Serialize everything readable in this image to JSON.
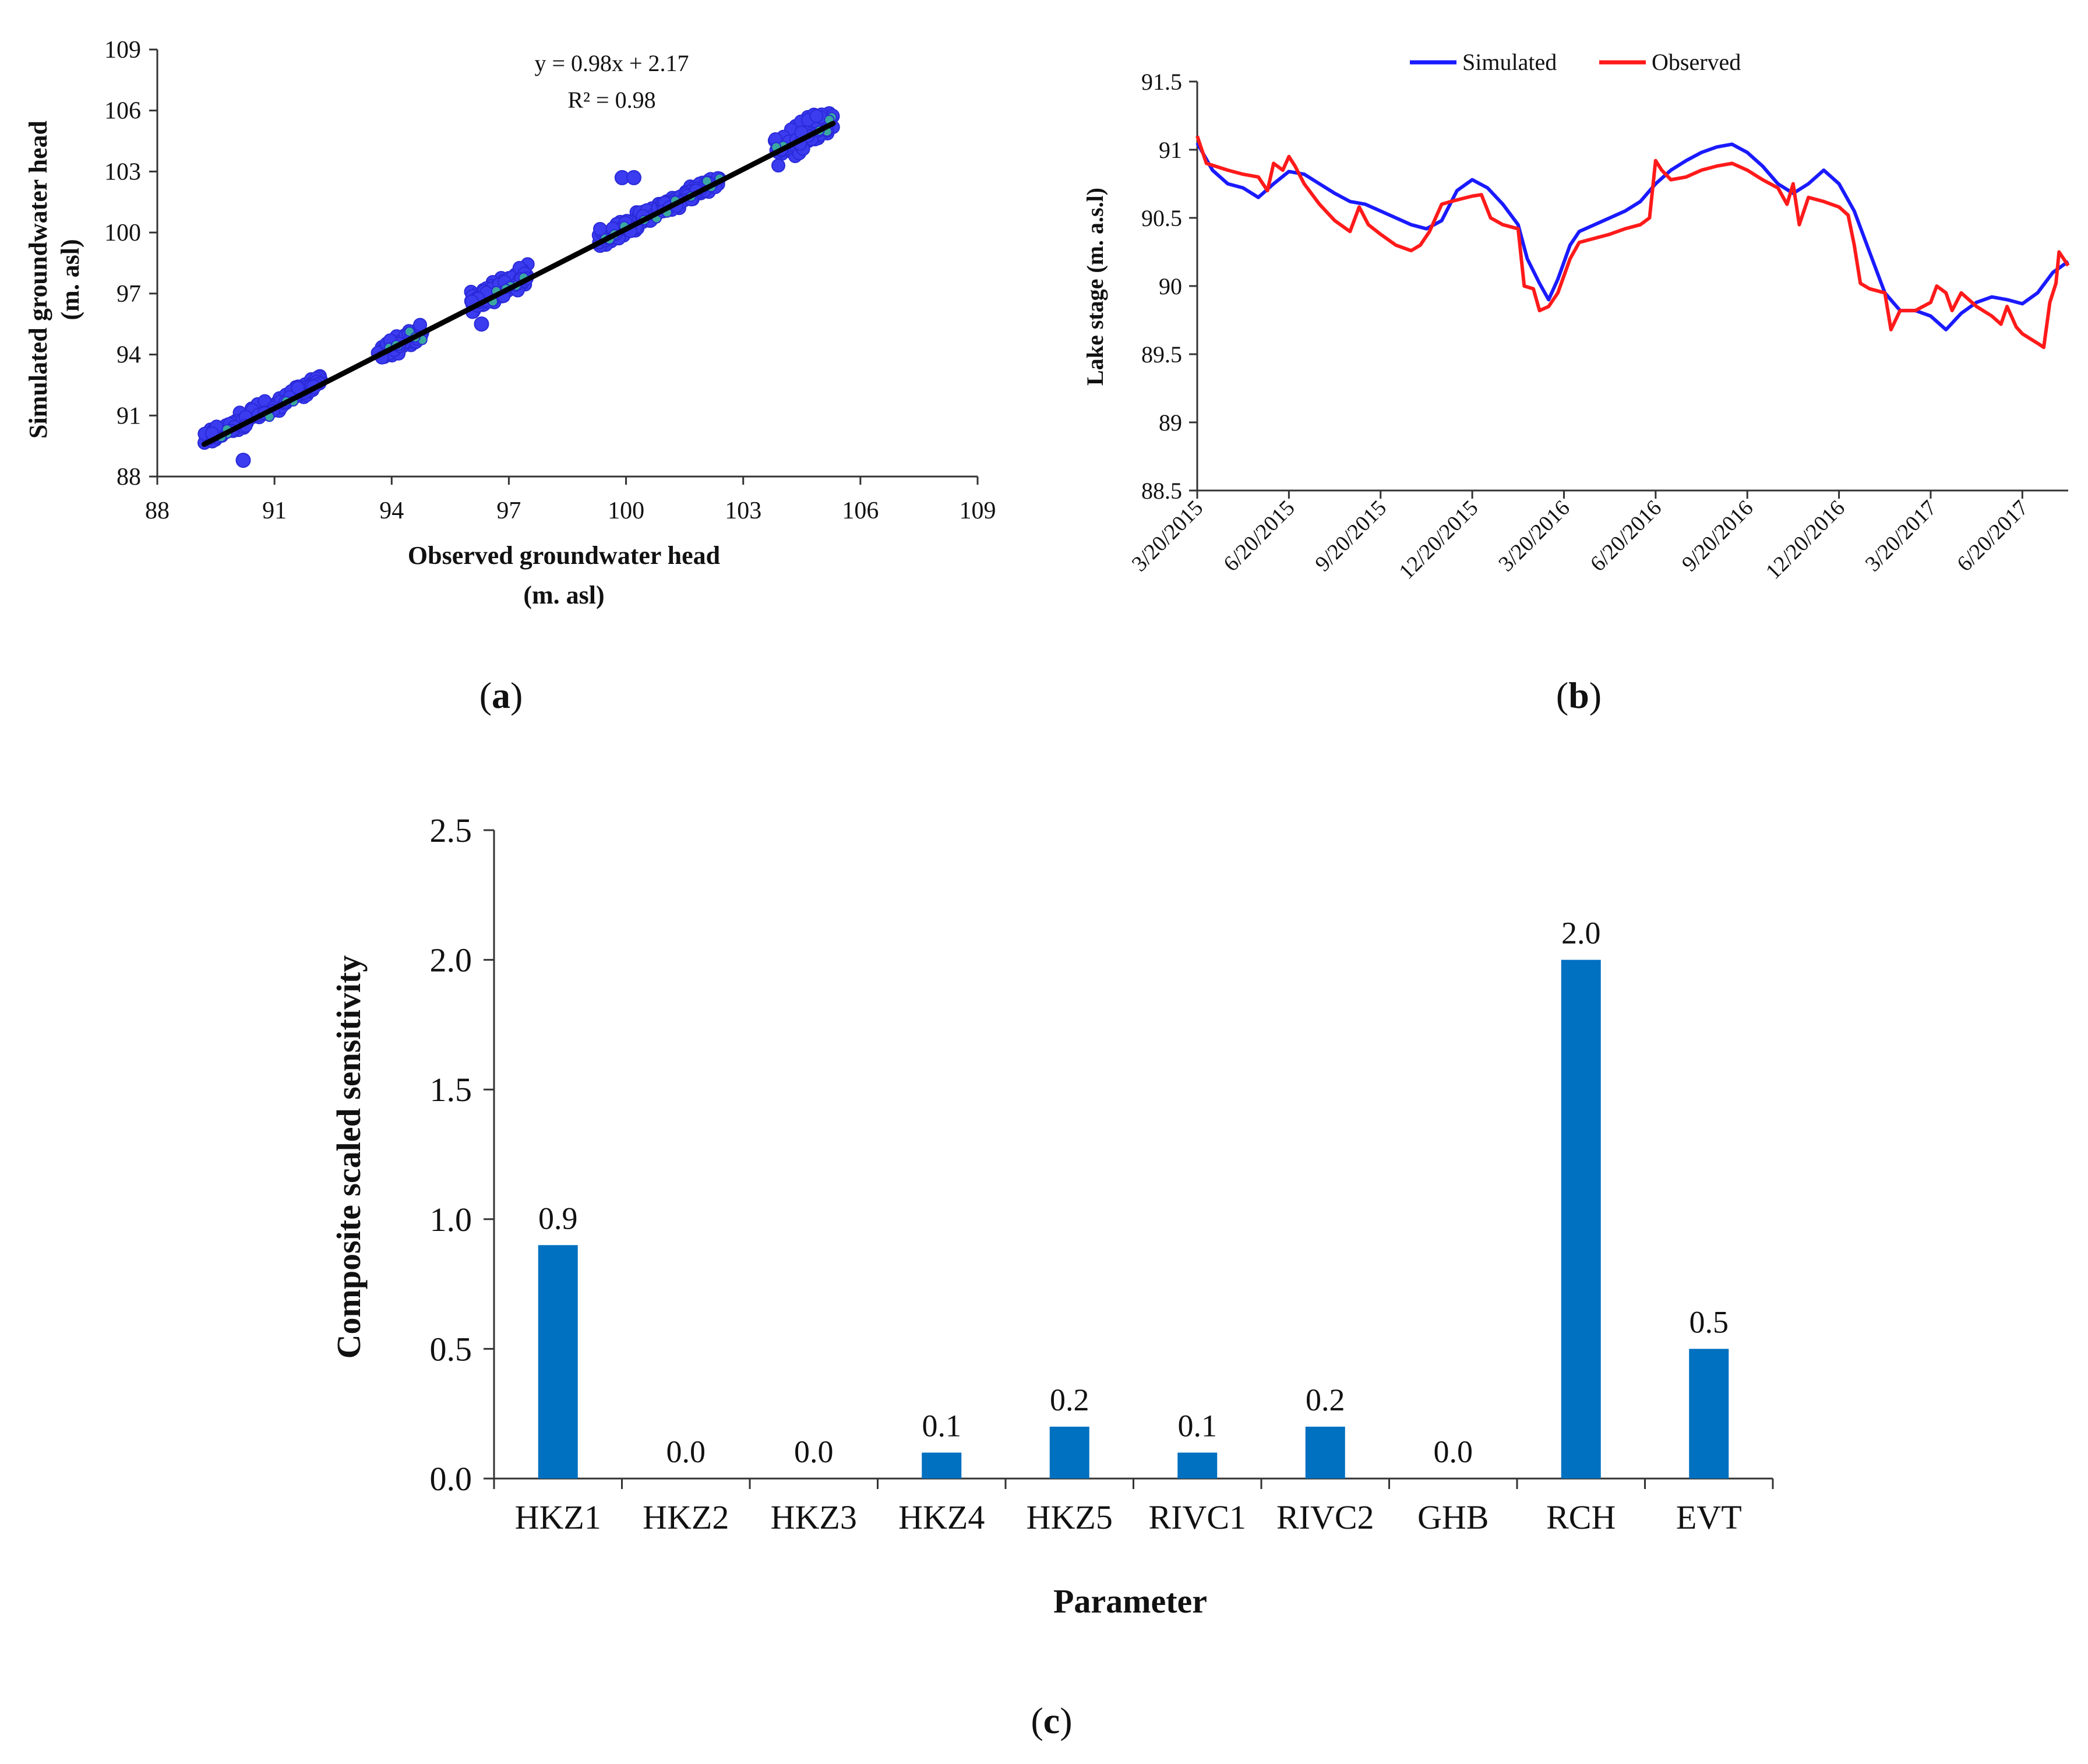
{
  "figure": {
    "panel_a_caption": {
      "open": "(",
      "letter": "a",
      "close": ")"
    },
    "panel_b_caption": {
      "open": "(",
      "letter": "b",
      "close": ")"
    },
    "panel_c_caption": {
      "open": "(",
      "letter": "c",
      "close": ")"
    }
  },
  "colors": {
    "scatter_fill": "#3b3bf0",
    "scatter_stroke": "#2a2ad8",
    "scatter_center": "#3aa8a0",
    "fit_line": "#000000",
    "simulated": "#1a1aff",
    "observed": "#ff1a1a",
    "bar": "#0070c0",
    "axis": "#333333"
  },
  "chart_data": [
    {
      "id": "a",
      "type": "scatter",
      "xlabel_line1": "Observed groundwater head",
      "xlabel_line2": "(m. asl)",
      "ylabel_line1": "Simulated groundwater head",
      "ylabel_line2": "(m. asl)",
      "xlim": [
        88,
        109
      ],
      "ylim": [
        88,
        109
      ],
      "xticks": [
        "88",
        "91",
        "94",
        "97",
        "100",
        "103",
        "106",
        "109"
      ],
      "yticks": [
        "88",
        "91",
        "94",
        "97",
        "100",
        "103",
        "106",
        "109"
      ],
      "equation": "y = 0.98x + 2.17",
      "r2": "R² = 0.98",
      "fit": {
        "slope": 0.98,
        "intercept": 2.17,
        "x_range": [
          89.2,
          105.3
        ]
      },
      "clusters": [
        {
          "x_range": [
            89.2,
            92.2
          ],
          "y_center_offset": 0.2,
          "spread": 0.55,
          "n": 170
        },
        {
          "x_range": [
            93.6,
            94.8
          ],
          "y_center_offset": 0.1,
          "spread": 0.65,
          "n": 80
        },
        {
          "x_range": [
            96.0,
            97.5
          ],
          "y_center_offset": 0.2,
          "spread": 0.7,
          "n": 100
        },
        {
          "x_range": [
            99.3,
            100.9
          ],
          "y_center_offset": 0.1,
          "spread": 0.6,
          "n": 110
        },
        {
          "x_range": [
            100.9,
            102.4
          ],
          "y_center_offset": 0.1,
          "spread": 0.5,
          "n": 90
        },
        {
          "x_range": [
            103.8,
            105.3
          ],
          "y_center_offset": 0.2,
          "spread": 1.1,
          "n": 130
        }
      ],
      "outliers": [
        {
          "x": 90.2,
          "y": 88.8
        },
        {
          "x": 99.9,
          "y": 102.7
        },
        {
          "x": 100.2,
          "y": 102.7
        },
        {
          "x": 92.0,
          "y": 92.4
        },
        {
          "x": 96.3,
          "y": 95.5
        }
      ]
    },
    {
      "id": "b",
      "type": "line",
      "ylabel": "Lake stage (m. a.s.l)",
      "ylim": [
        88.5,
        91.5
      ],
      "yticks": [
        "88.5",
        "89",
        "89.5",
        "90",
        "90.5",
        "91",
        "91.5"
      ],
      "x_tick_labels": [
        "3/20/2015",
        "6/20/2015",
        "9/20/2015",
        "12/20/2015",
        "3/20/2016",
        "6/20/2016",
        "9/20/2016",
        "12/20/2016",
        "3/20/2017",
        "6/20/2017"
      ],
      "x_range_months": [
        0,
        28.5
      ],
      "legend": [
        "Simulated",
        "Observed"
      ],
      "series": [
        {
          "name": "Simulated",
          "points": [
            [
              0,
              91.05
            ],
            [
              0.5,
              90.85
            ],
            [
              1,
              90.75
            ],
            [
              1.5,
              90.72
            ],
            [
              2,
              90.65
            ],
            [
              2.5,
              90.75
            ],
            [
              3,
              90.84
            ],
            [
              3.5,
              90.82
            ],
            [
              4,
              90.75
            ],
            [
              4.5,
              90.68
            ],
            [
              5,
              90.62
            ],
            [
              5.5,
              90.6
            ],
            [
              6,
              90.55
            ],
            [
              6.5,
              90.5
            ],
            [
              7,
              90.45
            ],
            [
              7.5,
              90.42
            ],
            [
              8,
              90.48
            ],
            [
              8.5,
              90.7
            ],
            [
              9,
              90.78
            ],
            [
              9.5,
              90.72
            ],
            [
              10,
              90.6
            ],
            [
              10.5,
              90.45
            ],
            [
              10.8,
              90.2
            ],
            [
              11.2,
              90.02
            ],
            [
              11.5,
              89.9
            ],
            [
              11.8,
              90.05
            ],
            [
              12.2,
              90.3
            ],
            [
              12.5,
              90.4
            ],
            [
              13,
              90.45
            ],
            [
              13.5,
              90.5
            ],
            [
              14,
              90.55
            ],
            [
              14.5,
              90.62
            ],
            [
              15,
              90.75
            ],
            [
              15.5,
              90.85
            ],
            [
              16,
              90.92
            ],
            [
              16.5,
              90.98
            ],
            [
              17,
              91.02
            ],
            [
              17.5,
              91.04
            ],
            [
              18,
              90.98
            ],
            [
              18.5,
              90.88
            ],
            [
              19,
              90.75
            ],
            [
              19.5,
              90.68
            ],
            [
              20,
              90.75
            ],
            [
              20.5,
              90.85
            ],
            [
              21,
              90.75
            ],
            [
              21.5,
              90.55
            ],
            [
              22,
              90.25
            ],
            [
              22.5,
              89.95
            ],
            [
              23,
              89.82
            ],
            [
              23.5,
              89.82
            ],
            [
              24,
              89.78
            ],
            [
              24.5,
              89.68
            ],
            [
              25,
              89.8
            ],
            [
              25.5,
              89.88
            ],
            [
              26,
              89.92
            ],
            [
              26.5,
              89.9
            ],
            [
              27,
              89.87
            ],
            [
              27.5,
              89.95
            ],
            [
              28,
              90.1
            ],
            [
              28.5,
              90.18
            ]
          ]
        },
        {
          "name": "Observed",
          "points": [
            [
              0,
              91.1
            ],
            [
              0.3,
              90.9
            ],
            [
              1,
              90.85
            ],
            [
              1.5,
              90.82
            ],
            [
              2,
              90.8
            ],
            [
              2.3,
              90.7
            ],
            [
              2.5,
              90.9
            ],
            [
              2.8,
              90.85
            ],
            [
              3,
              90.95
            ],
            [
              3.2,
              90.88
            ],
            [
              3.5,
              90.75
            ],
            [
              4,
              90.6
            ],
            [
              4.5,
              90.48
            ],
            [
              5,
              90.4
            ],
            [
              5.3,
              90.58
            ],
            [
              5.6,
              90.45
            ],
            [
              6,
              90.38
            ],
            [
              6.5,
              90.3
            ],
            [
              7,
              90.26
            ],
            [
              7.3,
              90.3
            ],
            [
              7.6,
              90.4
            ],
            [
              8,
              90.6
            ],
            [
              8.3,
              90.62
            ],
            [
              9,
              90.66
            ],
            [
              9.3,
              90.67
            ],
            [
              9.6,
              90.5
            ],
            [
              10,
              90.45
            ],
            [
              10.5,
              90.42
            ],
            [
              10.7,
              90.0
            ],
            [
              11,
              89.98
            ],
            [
              11.2,
              89.82
            ],
            [
              11.5,
              89.85
            ],
            [
              11.8,
              89.95
            ],
            [
              12.2,
              90.2
            ],
            [
              12.5,
              90.32
            ],
            [
              13,
              90.35
            ],
            [
              13.5,
              90.38
            ],
            [
              14,
              90.42
            ],
            [
              14.5,
              90.45
            ],
            [
              14.8,
              90.5
            ],
            [
              15,
              90.92
            ],
            [
              15.2,
              90.85
            ],
            [
              15.5,
              90.78
            ],
            [
              16,
              90.8
            ],
            [
              16.5,
              90.85
            ],
            [
              17,
              90.88
            ],
            [
              17.5,
              90.9
            ],
            [
              18,
              90.85
            ],
            [
              18.5,
              90.78
            ],
            [
              19,
              90.72
            ],
            [
              19.3,
              90.6
            ],
            [
              19.5,
              90.75
            ],
            [
              19.7,
              90.45
            ],
            [
              20,
              90.65
            ],
            [
              20.5,
              90.62
            ],
            [
              21,
              90.58
            ],
            [
              21.3,
              90.52
            ],
            [
              21.5,
              90.3
            ],
            [
              21.7,
              90.02
            ],
            [
              22,
              89.98
            ],
            [
              22.5,
              89.95
            ],
            [
              22.7,
              89.68
            ],
            [
              23,
              89.82
            ],
            [
              23.5,
              89.82
            ],
            [
              24,
              89.88
            ],
            [
              24.2,
              90.0
            ],
            [
              24.5,
              89.95
            ],
            [
              24.7,
              89.82
            ],
            [
              25,
              89.95
            ],
            [
              25.5,
              89.85
            ],
            [
              26,
              89.78
            ],
            [
              26.3,
              89.72
            ],
            [
              26.5,
              89.85
            ],
            [
              26.8,
              89.7
            ],
            [
              27,
              89.65
            ],
            [
              27.5,
              89.58
            ],
            [
              27.7,
              89.55
            ],
            [
              27.9,
              89.88
            ],
            [
              28.1,
              90.02
            ],
            [
              28.2,
              90.25
            ],
            [
              28.5,
              90.15
            ]
          ]
        }
      ]
    },
    {
      "id": "c",
      "type": "bar",
      "xlabel": "Parameter",
      "ylabel": "Composite scaled sensitivity",
      "ylim": [
        0,
        2.5
      ],
      "yticks": [
        "0.0",
        "0.5",
        "1.0",
        "1.5",
        "2.0",
        "2.5"
      ],
      "categories": [
        "HKZ1",
        "HKZ2",
        "HKZ3",
        "HKZ4",
        "HKZ5",
        "RIVC1",
        "RIVC2",
        "GHB",
        "RCH",
        "EVT"
      ],
      "values": [
        0.9,
        0.0,
        0.0,
        0.1,
        0.2,
        0.1,
        0.2,
        0.0,
        2.0,
        0.5
      ],
      "value_labels": [
        "0.9",
        "0.0",
        "0.0",
        "0.1",
        "0.2",
        "0.1",
        "0.2",
        "0.0",
        "2.0",
        "0.5"
      ]
    }
  ]
}
